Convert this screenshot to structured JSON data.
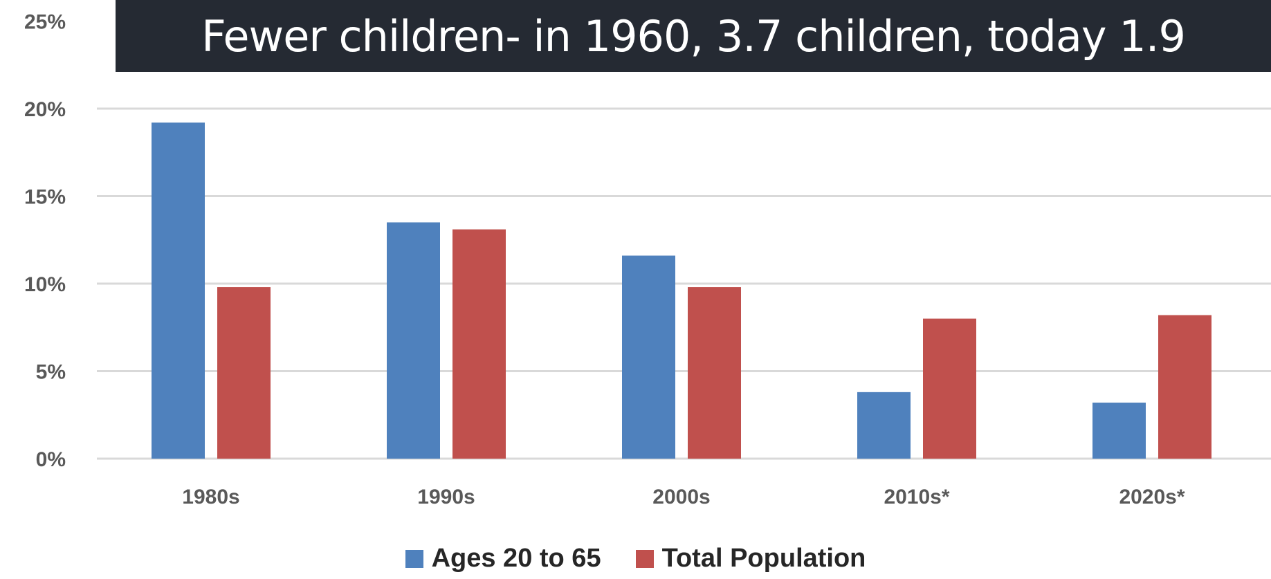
{
  "banner": {
    "text": "Fewer children- in 1960, 3.7 children, today 1.9"
  },
  "chart_data": {
    "type": "bar",
    "title": "",
    "xlabel": "",
    "ylabel": "",
    "categories": [
      "1980s",
      "1990s",
      "2000s",
      "2010s*",
      "2020s*"
    ],
    "series": [
      {
        "name": "Ages 20 to 65",
        "color": "#4f81bd",
        "values": [
          19.2,
          13.5,
          11.6,
          3.8,
          3.2
        ]
      },
      {
        "name": "Total Population",
        "color": "#c0504d",
        "values": [
          9.8,
          13.1,
          9.8,
          8.0,
          8.2
        ]
      }
    ],
    "ylim": [
      0,
      25
    ],
    "yticks": [
      "0%",
      "5%",
      "10%",
      "15%",
      "20%",
      "25%"
    ],
    "ytick_values": [
      0,
      5,
      10,
      15,
      20,
      25
    ],
    "grid": true,
    "legend_position": "bottom"
  }
}
